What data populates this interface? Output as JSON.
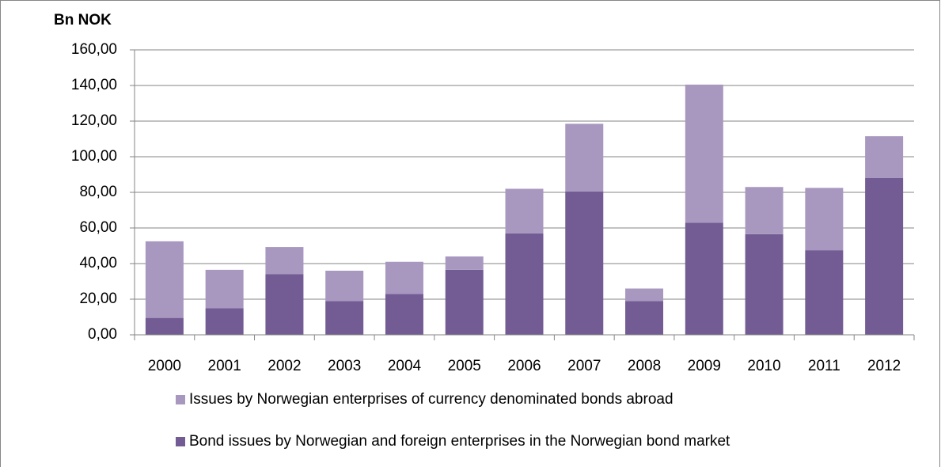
{
  "chart_data": {
    "type": "bar",
    "stacked": true,
    "y_label": "Bn NOK",
    "categories": [
      "2000",
      "2001",
      "2002",
      "2003",
      "2004",
      "2005",
      "2006",
      "2007",
      "2008",
      "2009",
      "2010",
      "2011",
      "2012"
    ],
    "series": [
      {
        "name": "Bond issues by Norwegian and foreign enterprises in the Norwegian bond market",
        "color": "#735b94",
        "values": [
          9.5,
          15,
          34,
          19,
          23,
          36.5,
          57,
          80.5,
          19,
          63,
          56.5,
          47.5,
          88
        ]
      },
      {
        "name": "Issues by Norwegian enterprises of currency denominated bonds abroad",
        "color": "#a898c0",
        "values": [
          43,
          21.5,
          15.3,
          17,
          18,
          7.5,
          25,
          38,
          7,
          77.5,
          26.5,
          35,
          23.5
        ]
      }
    ],
    "ylim": [
      0,
      160
    ],
    "yticks": [
      {
        "value": 0,
        "label": "0,00"
      },
      {
        "value": 20,
        "label": "20,00"
      },
      {
        "value": 40,
        "label": "40,00"
      },
      {
        "value": 60,
        "label": "60,00"
      },
      {
        "value": 80,
        "label": "80,00"
      },
      {
        "value": 100,
        "label": "100,00"
      },
      {
        "value": 120,
        "label": "120,00"
      },
      {
        "value": 140,
        "label": "140,00"
      },
      {
        "value": 160,
        "label": "160,00"
      }
    ],
    "grid": true,
    "legend": "bottom"
  }
}
